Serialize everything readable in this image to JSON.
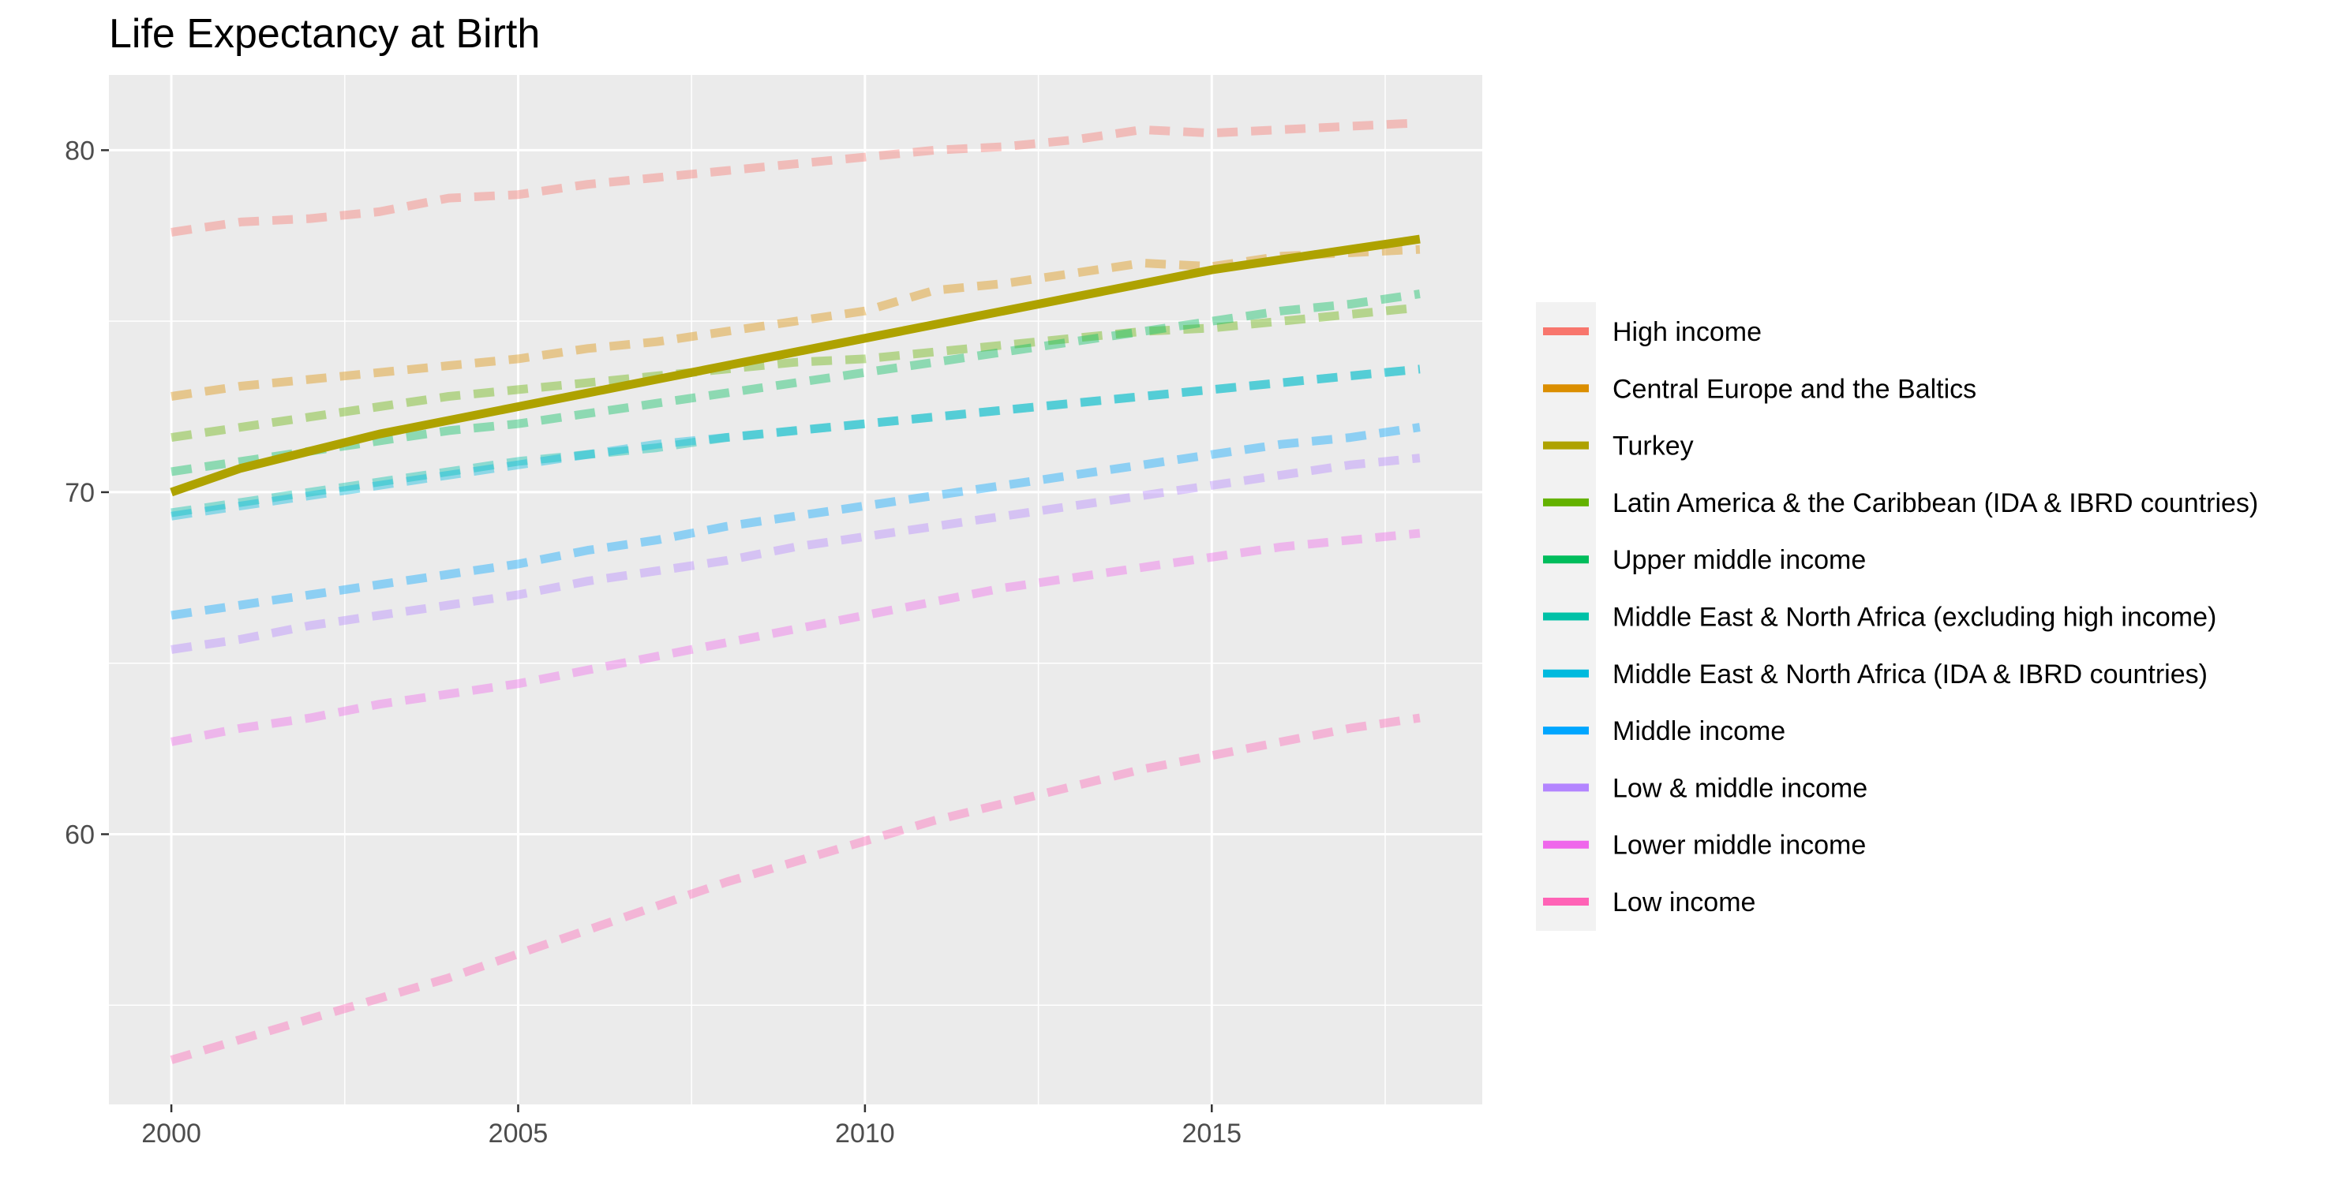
{
  "chart_data": {
    "type": "line",
    "title": "Life Expectancy at Birth",
    "xlabel": "",
    "ylabel": "",
    "xlim": [
      1999.1,
      2018.9
    ],
    "ylim": [
      52.1,
      82.2
    ],
    "x_ticks": [
      2000,
      2005,
      2010,
      2015
    ],
    "y_ticks": [
      60,
      70,
      80
    ],
    "grid": true,
    "legend_position": "right",
    "x": [
      2000,
      2001,
      2002,
      2003,
      2004,
      2005,
      2006,
      2007,
      2008,
      2009,
      2010,
      2011,
      2012,
      2013,
      2014,
      2015,
      2016,
      2017,
      2018
    ],
    "series": [
      {
        "name": "High income",
        "color": "#F8766D",
        "highlight": false,
        "values": [
          77.6,
          77.9,
          78.0,
          78.2,
          78.6,
          78.7,
          79.0,
          79.2,
          79.4,
          79.6,
          79.8,
          80.0,
          80.1,
          80.3,
          80.6,
          80.5,
          80.6,
          80.7,
          80.8
        ]
      },
      {
        "name": "Central Europe and the Baltics",
        "color": "#DB8E00",
        "highlight": false,
        "values": [
          72.8,
          73.1,
          73.3,
          73.5,
          73.7,
          73.9,
          74.2,
          74.4,
          74.7,
          75.0,
          75.3,
          75.9,
          76.1,
          76.4,
          76.7,
          76.6,
          76.9,
          77.0,
          77.1
        ]
      },
      {
        "name": "Turkey",
        "color": "#AEA200",
        "highlight": true,
        "values": [
          70.0,
          70.7,
          71.2,
          71.7,
          72.1,
          72.5,
          72.9,
          73.3,
          73.7,
          74.1,
          74.5,
          74.9,
          75.3,
          75.7,
          76.1,
          76.5,
          76.8,
          77.1,
          77.4
        ]
      },
      {
        "name": "Latin America & the Caribbean (IDA & IBRD countries)",
        "color": "#64B200",
        "highlight": false,
        "values": [
          71.6,
          71.9,
          72.2,
          72.5,
          72.8,
          73.0,
          73.2,
          73.4,
          73.6,
          73.8,
          73.9,
          74.1,
          74.3,
          74.5,
          74.7,
          74.8,
          75.0,
          75.2,
          75.4
        ]
      },
      {
        "name": "Upper middle income",
        "color": "#00BD5C",
        "highlight": false,
        "values": [
          70.6,
          70.9,
          71.2,
          71.5,
          71.8,
          72.0,
          72.3,
          72.6,
          72.9,
          73.2,
          73.5,
          73.8,
          74.1,
          74.4,
          74.7,
          75.0,
          75.3,
          75.5,
          75.8
        ]
      },
      {
        "name": "Middle East & North Africa (excluding high income)",
        "color": "#00C1A7",
        "highlight": false,
        "values": [
          69.4,
          69.7,
          70.0,
          70.3,
          70.6,
          70.9,
          71.1,
          71.3,
          71.6,
          71.8,
          72.0,
          72.2,
          72.4,
          72.6,
          72.8,
          73.0,
          73.2,
          73.4,
          73.6
        ]
      },
      {
        "name": "Middle East & North Africa (IDA & IBRD countries)",
        "color": "#00BADE",
        "highlight": false,
        "values": [
          69.3,
          69.6,
          69.9,
          70.2,
          70.5,
          70.8,
          71.1,
          71.4,
          71.6,
          71.8,
          72.0,
          72.2,
          72.4,
          72.6,
          72.8,
          73.0,
          73.2,
          73.4,
          73.6
        ]
      },
      {
        "name": "Middle income",
        "color": "#00A6FF",
        "highlight": false,
        "values": [
          66.4,
          66.7,
          67.0,
          67.3,
          67.6,
          67.9,
          68.3,
          68.6,
          69.0,
          69.3,
          69.6,
          69.9,
          70.2,
          70.5,
          70.8,
          71.1,
          71.4,
          71.6,
          71.9
        ]
      },
      {
        "name": "Low & middle income",
        "color": "#B385FF",
        "highlight": false,
        "values": [
          65.4,
          65.7,
          66.1,
          66.4,
          66.7,
          67.0,
          67.4,
          67.7,
          68.0,
          68.4,
          68.7,
          69.0,
          69.3,
          69.6,
          69.9,
          70.2,
          70.5,
          70.8,
          71.0
        ]
      },
      {
        "name": "Lower middle income",
        "color": "#EF67EB",
        "highlight": false,
        "values": [
          62.7,
          63.1,
          63.4,
          63.8,
          64.1,
          64.4,
          64.8,
          65.2,
          65.6,
          66.0,
          66.4,
          66.8,
          67.2,
          67.5,
          67.8,
          68.1,
          68.4,
          68.6,
          68.8
        ]
      },
      {
        "name": "Low income",
        "color": "#FF63B6",
        "highlight": false,
        "values": [
          53.4,
          54.0,
          54.6,
          55.2,
          55.8,
          56.5,
          57.2,
          57.9,
          58.6,
          59.2,
          59.8,
          60.4,
          60.9,
          61.4,
          61.9,
          62.3,
          62.7,
          63.1,
          63.4
        ]
      }
    ]
  }
}
